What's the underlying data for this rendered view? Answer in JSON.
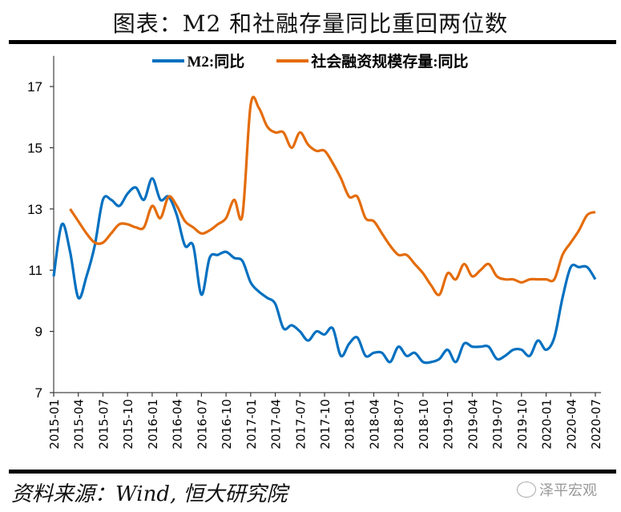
{
  "title": "图表：M2 和社融存量同比重回两位数",
  "source": "资料来源：Wind, 恒大研究院",
  "watermark": "泽平宏观",
  "chart_data": {
    "type": "line",
    "title": "图表：M2 和社融存量同比重回两位数",
    "xlabel": "",
    "ylabel": "",
    "ylim": [
      7,
      18
    ],
    "yticks": [
      7,
      9,
      11,
      13,
      15,
      17
    ],
    "grid": false,
    "legend_position": "top",
    "x_start": "2015-01",
    "x_tick_labels": [
      "2015-01",
      "2015-04",
      "2015-07",
      "2015-10",
      "2016-01",
      "2016-04",
      "2016-07",
      "2016-10",
      "2017-01",
      "2017-04",
      "2017-07",
      "2017-10",
      "2018-01",
      "2018-04",
      "2018-07",
      "2018-10",
      "2019-01",
      "2019-04",
      "2019-07",
      "2019-10",
      "2020-01",
      "2020-04",
      "2020-07"
    ],
    "series": [
      {
        "name": "M2:同比",
        "color": "#0070C0",
        "values": [
          10.8,
          12.5,
          11.6,
          10.1,
          10.8,
          11.8,
          13.3,
          13.3,
          13.1,
          13.5,
          13.7,
          13.3,
          14.0,
          13.3,
          13.4,
          12.8,
          11.8,
          11.8,
          10.2,
          11.4,
          11.5,
          11.6,
          11.4,
          11.3,
          10.6,
          10.3,
          10.1,
          9.9,
          9.1,
          9.2,
          9.0,
          8.7,
          9.0,
          8.9,
          9.1,
          8.2,
          8.6,
          8.8,
          8.2,
          8.3,
          8.3,
          8.0,
          8.5,
          8.2,
          8.3,
          8.0,
          8.0,
          8.1,
          8.4,
          8.0,
          8.6,
          8.5,
          8.5,
          8.5,
          8.1,
          8.2,
          8.4,
          8.4,
          8.2,
          8.7,
          8.4,
          8.8,
          10.1,
          11.1,
          11.1,
          11.1,
          10.7
        ]
      },
      {
        "name": "社会融资规模存量:同比",
        "color": "#E46C0A",
        "values": [
          null,
          null,
          13.0,
          12.6,
          12.2,
          11.9,
          11.9,
          12.2,
          12.5,
          12.5,
          12.4,
          12.4,
          13.1,
          12.7,
          13.4,
          13.1,
          12.6,
          12.4,
          12.2,
          12.3,
          12.5,
          12.7,
          13.3,
          12.8,
          16.4,
          16.3,
          15.7,
          15.5,
          15.5,
          15.0,
          15.5,
          15.1,
          14.9,
          14.9,
          14.5,
          14.0,
          13.4,
          13.4,
          12.7,
          12.6,
          12.2,
          11.8,
          11.5,
          11.5,
          11.2,
          10.9,
          10.5,
          10.2,
          10.9,
          10.7,
          11.2,
          10.8,
          11.0,
          11.2,
          10.8,
          10.7,
          10.7,
          10.6,
          10.7,
          10.7,
          10.7,
          10.7,
          11.5,
          11.9,
          12.3,
          12.8,
          12.9
        ]
      }
    ]
  }
}
